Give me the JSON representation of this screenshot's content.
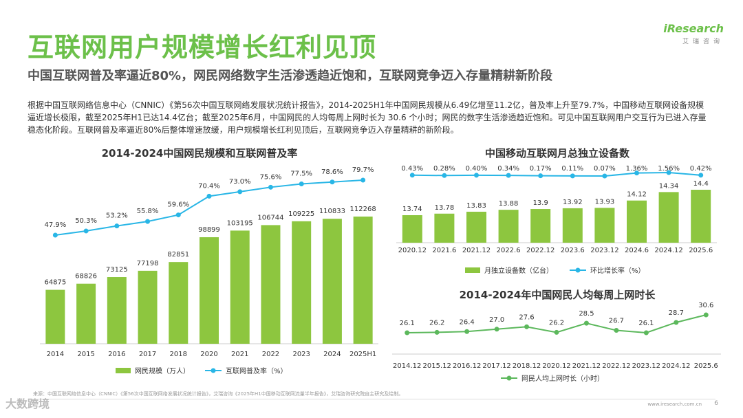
{
  "header": {
    "title": "互联网用户规模增长红利见顶",
    "subtitle": "中国互联网普及率逼近80%，网民网络数字生活渗透趋近饱和，互联网竞争迈入存量精耕新阶段",
    "logo": "iResearch",
    "logo_sub": "艾瑞咨询"
  },
  "paragraph": "根据中国互联网络信息中心（CNNIC）《第56次中国互联网络发展状况统计报告》，2014-2025H1年中国网民规模从6.49亿增至11.2亿，普及率上升至79.7%，中国移动互联网设备规模逼近增长极限，截至2025年H1已达14.4亿台；截至2025年6月，中国网民的人均每周上网时长为 30.6 个小时；网民的数字生活渗透趋近饱和。可见中国互联网用户交互行为已进入存量稳态化阶段。互联网普及率逼近80%后整体增速放缓，用户规模增长红利见顶后，互联网竞争迈入存量精耕的新阶段。",
  "colors": {
    "bar": "#8dc63f",
    "line": "#29b6e6",
    "green_line": "#5cb85c",
    "title": "#6cc04a"
  },
  "chart_data": [
    {
      "type": "bar",
      "title": "2014-2024中国网民规模和互联网普及率",
      "categories": [
        "2014",
        "2015",
        "2016",
        "2017",
        "2018",
        "2020",
        "2021",
        "2022",
        "2023",
        "2024",
        "2025H1"
      ],
      "series": [
        {
          "name": "网民规模（万人）",
          "type": "bar",
          "values": [
            64875,
            68826,
            73125,
            77198,
            82851,
            98899,
            103195,
            106744,
            109225,
            110833,
            112268
          ]
        },
        {
          "name": "互联网普及率（%）",
          "type": "line",
          "values": [
            47.9,
            50.3,
            53.2,
            55.8,
            59.6,
            70.4,
            73.0,
            75.6,
            77.5,
            78.6,
            79.7
          ],
          "labels": [
            "47.9%",
            "50.3%",
            "53.2%",
            "55.8%",
            "59.6%",
            "70.4%",
            "73.0%",
            "75.6%",
            "77.5%",
            "78.6%",
            "79.7%"
          ]
        }
      ]
    },
    {
      "type": "bar",
      "title": "中国移动互联网月总独立设备数",
      "categories": [
        "2020.12",
        "2021.6",
        "2021.12",
        "2022.6",
        "2022.12",
        "2023.6",
        "2023.12",
        "2024.6",
        "2024.12",
        "2025.6"
      ],
      "series": [
        {
          "name": "月独立设备数（亿台）",
          "type": "bar",
          "values": [
            13.74,
            13.78,
            13.83,
            13.88,
            13.9,
            13.92,
            13.93,
            14.12,
            14.34,
            14.4
          ]
        },
        {
          "name": "环比增长率（%）",
          "type": "line",
          "values": [
            0.43,
            0.28,
            0.4,
            0.34,
            0.17,
            0.11,
            0.07,
            1.36,
            1.56,
            0.42
          ],
          "labels": [
            "0.43%",
            "0.28%",
            "0.40%",
            "0.34%",
            "0.17%",
            "0.11%",
            "0.07%",
            "1.36%",
            "1.56%",
            "0.42%"
          ]
        }
      ]
    },
    {
      "type": "line",
      "title": "2014-2024年中国网民人均每周上网时长",
      "categories": [
        "2014.12",
        "2015.12",
        "2016.12",
        "2017.12",
        "2018.12",
        "2020.12",
        "2021.12",
        "2022.12",
        "2023.12",
        "2024.12",
        "2025.6"
      ],
      "series": [
        {
          "name": "网民人均上网时长（小时）",
          "values": [
            26.1,
            26.2,
            26.4,
            27.0,
            27.6,
            26.2,
            28.5,
            26.7,
            26.1,
            28.7,
            30.6
          ],
          "labels": [
            "26.1",
            "26.2",
            "26.4",
            "27.0",
            "27.6",
            "26.2",
            "28.5",
            "26.7",
            "26.1",
            "28.7",
            "30.6"
          ]
        }
      ]
    }
  ],
  "footer": {
    "source": "来源：中国互联网络信息中心（CNNIC）《第56次中国互联网络发展状况统计报告》，艾瑞咨询《2025年H1中国移动互联网流量半年报告》，艾瑞咨询研究院自主研究及绘制。",
    "watermark": "大数跨境",
    "site": "www.iresearch.com.cn",
    "page": "6"
  }
}
